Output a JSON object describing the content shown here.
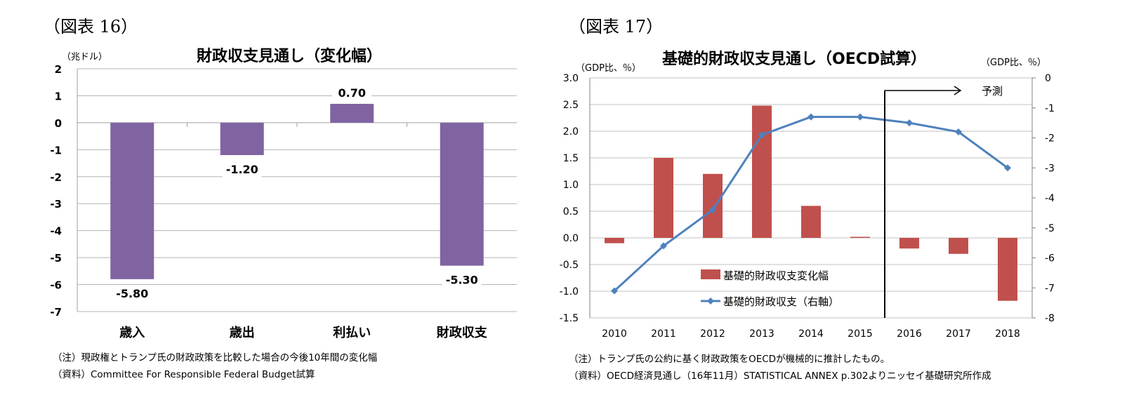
{
  "figures": [
    {
      "label": "（図表 16）",
      "title": "財政収支見通し（変化幅）",
      "unit": "（兆ドル）",
      "note": "（注）現政権とトランプ氏の財政政策を比較した場合の今後10年間の変化幅",
      "source": "（資料）Committee For Responsible Federal Budget試算"
    },
    {
      "label": "（図表 17）",
      "title": "基礎的財政収支見通し（OECD試算）",
      "unit_left": "（GDP比、％）",
      "unit_right": "（GDP比、％）",
      "forecast_label": "予測",
      "note": "（注）トランプ氏の公約に基く財政政策をOECDが機械的に推計したもの。",
      "source": "（資料）OECD経済見通し（16年11月）STATISTICAL ANNEX p.302よりニッセイ基礎研究所作成"
    }
  ],
  "chart_data": [
    {
      "type": "bar",
      "title": "財政収支見通し（変化幅）",
      "ylabel": "（兆ドル）",
      "categories": [
        "歳入",
        "歳出",
        "利払い",
        "財政収支"
      ],
      "values": [
        -5.8,
        -1.2,
        0.7,
        -5.3
      ],
      "data_labels": [
        "-5.80",
        "-1.20",
        "0.70",
        "-5.30"
      ],
      "ylim": [
        -7,
        2
      ],
      "yticks": [
        "2",
        "1",
        "0",
        "-1",
        "-2",
        "-3",
        "-4",
        "-5",
        "-6",
        "-7"
      ],
      "grid": true,
      "color": "#8064a2"
    },
    {
      "type": "bar+line",
      "title": "基礎的財政収支見通し（OECD試算）",
      "x": [
        "2010",
        "2011",
        "2012",
        "2013",
        "2014",
        "2015",
        "2016",
        "2017",
        "2018"
      ],
      "series": [
        {
          "name": "基礎的財政収支変化幅",
          "type": "bar",
          "axis": "left",
          "color": "#c0504d",
          "values": [
            -0.1,
            1.5,
            1.2,
            2.48,
            0.6,
            0.02,
            -0.2,
            -0.3,
            -1.18
          ]
        },
        {
          "name": "基礎的財政収支（右軸）",
          "type": "line",
          "axis": "right",
          "color": "#4f81bd",
          "values": [
            -7.1,
            -5.6,
            -4.4,
            -1.9,
            -1.3,
            -1.3,
            -1.5,
            -1.8,
            -3.0
          ]
        }
      ],
      "ylim_left": [
        -1.5,
        3.0
      ],
      "yticks_left": [
        "3.0",
        "2.5",
        "2.0",
        "1.5",
        "1.0",
        "0.5",
        "0.0",
        "-0.5",
        "-1.0",
        "-1.5"
      ],
      "ylim_right": [
        -8,
        0
      ],
      "yticks_right": [
        "0",
        "-1",
        "-2",
        "-3",
        "-4",
        "-5",
        "-6",
        "-7",
        "-8"
      ],
      "forecast_from": "2016",
      "grid": true
    }
  ]
}
